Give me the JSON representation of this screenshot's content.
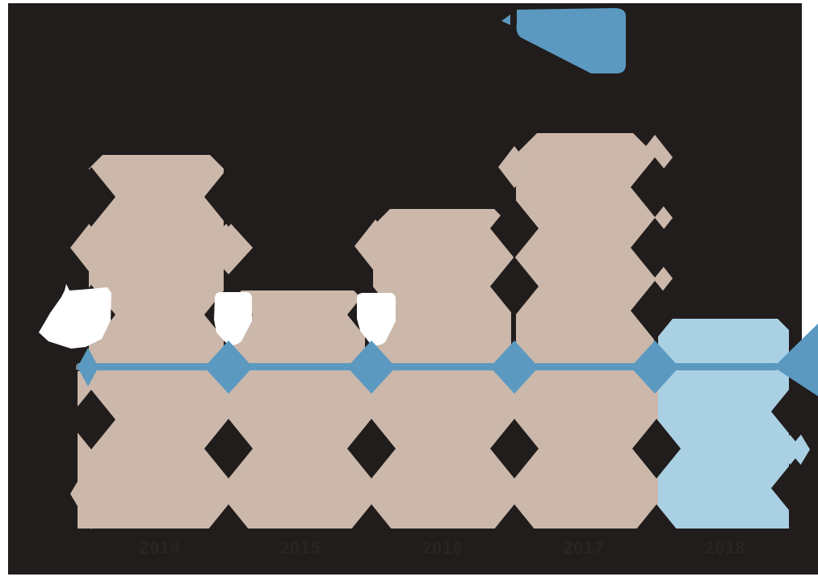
{
  "page": {
    "background": "#ffffff",
    "canvas_background": "#211d1c"
  },
  "logo": {
    "name": "flag-logo",
    "color": "#5b99c0"
  },
  "chart_data": {
    "type": "bar",
    "title": "",
    "xlabel": "",
    "ylabel": "",
    "categories": [
      "2014",
      "2015",
      "2016",
      "2017",
      "2018"
    ],
    "values": [
      463,
      295,
      396,
      490,
      260
    ],
    "value_unit": "estimated-pixels-above-baseline (axis text not legible)",
    "ylim": [
      0,
      520
    ],
    "grid": false,
    "legend": "none",
    "bar_color": "#cbb8ab",
    "highlight_index": 4,
    "highlight_color": "#aad0e4",
    "reference_line": {
      "value": 200,
      "color": "#5b99c0",
      "marker": "diamond",
      "marker_positions": 6
    },
    "marker_highlight_color": "#ffffff",
    "lattice_hole_color": "#211d1c",
    "x_label_color": "#2b2522",
    "tick_color": "#77838c"
  }
}
